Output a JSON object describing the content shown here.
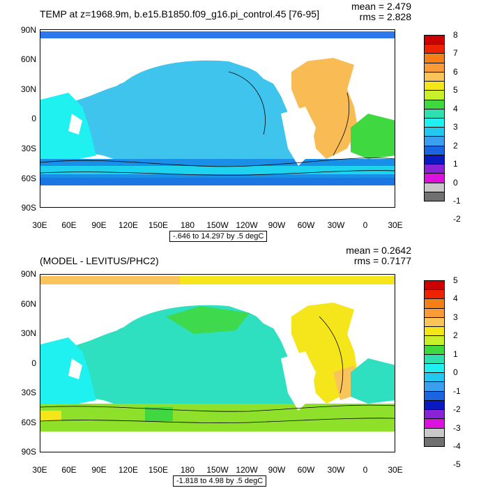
{
  "panels": [
    {
      "id": "top",
      "title": "TEMP at z=1968.9m, b.e15.B1850.f09_g16.pi_control.45 [76-95]",
      "mean_text": "mean = 2.479",
      "rms_text": "rms = 2.828",
      "range_text": "-.646 to 14.297 by .5 degC",
      "colorbar_labels": [
        "8",
        "7",
        "6",
        "5",
        "4",
        "3",
        "2",
        "1",
        "0",
        "-1",
        "-2"
      ],
      "colorbar_colors": [
        "#cc0000",
        "#ee2200",
        "#f57f17",
        "#f89b38",
        "#f9c45a",
        "#f4e61a",
        "#c8ef2a",
        "#40d840",
        "#2ee0b0",
        "#1ff0f0",
        "#22c8f0",
        "#3b9ff0",
        "#1a66e0",
        "#0a1ac0",
        "#8a22d8",
        "#dd11dd",
        "#c8c8c8",
        "#707070"
      ],
      "ocean_color": "#22c8f0",
      "features": {
        "pacific": "#3fc4ee",
        "atlantic": "#f9bb54",
        "southern": "#1a8fe8",
        "arctic": "#2b78ec"
      }
    },
    {
      "id": "bottom",
      "title": "(MODEL - LEVITUS/PHC2)",
      "mean_text": "mean = 0.2642",
      "rms_text": "rms = 0.7177",
      "range_text": "-1.818 to 4.98 by .5 degC",
      "colorbar_labels": [
        "5",
        "4",
        "3",
        "2",
        "1",
        "0",
        "-1",
        "-2",
        "-3",
        "-4",
        "-5"
      ],
      "colorbar_colors": [
        "#cc0000",
        "#ee2200",
        "#f57f17",
        "#f89b38",
        "#f9c45a",
        "#f4e61a",
        "#c8ef2a",
        "#40d840",
        "#2ee0b0",
        "#1ff0f0",
        "#22c8f0",
        "#3b9ff0",
        "#1a66e0",
        "#0a1ac0",
        "#8a22d8",
        "#dd11dd",
        "#c8c8c8",
        "#707070"
      ],
      "ocean_color": "#2ee0b0",
      "features": {
        "pacific": "#2ee0c0",
        "atlantic": "#f4e61a",
        "southern": "#8ee02a",
        "arctic": "#f9c45a"
      }
    }
  ],
  "y_axis_labels": [
    "90N",
    "60N",
    "30N",
    "0",
    "30S",
    "60S",
    "90S"
  ],
  "x_axis_labels": [
    "30E",
    "60E",
    "90E",
    "120E",
    "150E",
    "180",
    "150W",
    "120W",
    "90W",
    "60W",
    "30W",
    "0",
    "30E"
  ]
}
